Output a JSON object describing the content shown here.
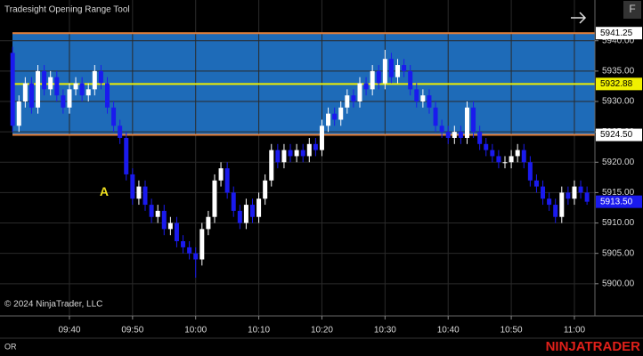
{
  "chart_data": {
    "type": "candlestick",
    "title": "Tradesight Opening Range Tool",
    "x": [
      571,
      572,
      573,
      574,
      575,
      576,
      577,
      578,
      579,
      580,
      581,
      582,
      583,
      584,
      585,
      586,
      587,
      588,
      589,
      590,
      591,
      592,
      593,
      594,
      595,
      596,
      597,
      598,
      599,
      600,
      601,
      602,
      603,
      604,
      605,
      606,
      607,
      608,
      609,
      610,
      611,
      612,
      613,
      614,
      615,
      616,
      617,
      618,
      619,
      620,
      621,
      622,
      623,
      624,
      625,
      626,
      627,
      628,
      629,
      630,
      631,
      632,
      633,
      634,
      635,
      636,
      637,
      638,
      639,
      640,
      641,
      642,
      643,
      644,
      645,
      646,
      647,
      648,
      649,
      650,
      651,
      652,
      653,
      654,
      655,
      656,
      657,
      658,
      659,
      660,
      661,
      662
    ],
    "open": [
      5938,
      5926,
      5930,
      5933,
      5929,
      5935,
      5932,
      5934,
      5931,
      5929,
      5932,
      5933,
      5931,
      5932,
      5935,
      5933,
      5929,
      5926,
      5924,
      5918,
      5914,
      5916,
      5913,
      5911,
      5912,
      5909,
      5910,
      5907,
      5906,
      5905,
      5904,
      5909,
      5911,
      5917,
      5919,
      5915,
      5912,
      5910,
      5913,
      5911,
      5914,
      5917,
      5922,
      5920,
      5922,
      5921,
      5922,
      5921,
      5923,
      5922,
      5926,
      5928,
      5927,
      5929,
      5931,
      5930,
      5933,
      5932,
      5935,
      5933,
      5937,
      5934,
      5936,
      5935,
      5932,
      5930,
      5931,
      5929,
      5926,
      5925,
      5924,
      5925,
      5924,
      5929,
      5925,
      5923,
      5922,
      5921,
      5920,
      5920,
      5921,
      5922,
      5920,
      5917,
      5916,
      5914,
      5913,
      5911,
      5915,
      5914,
      5916,
      5915
    ],
    "high": [
      5939,
      5931,
      5934,
      5934,
      5936,
      5936,
      5935,
      5935,
      5932,
      5933,
      5934,
      5934,
      5933,
      5936,
      5936,
      5934,
      5930,
      5927,
      5925,
      5919,
      5917,
      5917,
      5914,
      5913,
      5913,
      5911,
      5911,
      5908,
      5907,
      5906,
      5910,
      5912,
      5918,
      5920,
      5920,
      5916,
      5913,
      5914,
      5914,
      5915,
      5918,
      5923,
      5923,
      5923,
      5923,
      5923,
      5923,
      5924,
      5924,
      5927,
      5929,
      5929,
      5930,
      5932,
      5932,
      5934,
      5934,
      5936,
      5936,
      5938.5,
      5938,
      5937,
      5937,
      5936,
      5933,
      5932,
      5932,
      5930,
      5927,
      5926,
      5926,
      5926,
      5930,
      5930,
      5926,
      5924,
      5923,
      5922,
      5921,
      5922,
      5923,
      5923,
      5921,
      5918,
      5917,
      5915,
      5914,
      5916,
      5916,
      5917,
      5917,
      5916
    ],
    "low": [
      5925,
      5925,
      5929,
      5928,
      5928,
      5931,
      5931,
      5930,
      5928,
      5928,
      5931,
      5930,
      5930,
      5931,
      5932,
      5928,
      5925,
      5923,
      5917,
      5913,
      5913,
      5912,
      5910,
      5910,
      5908,
      5908,
      5906,
      5905,
      5904,
      5901,
      5903,
      5908,
      5910,
      5916,
      5914,
      5911,
      5909,
      5909,
      5910,
      5910,
      5913,
      5916,
      5919,
      5919,
      5920,
      5920,
      5920,
      5920,
      5921,
      5921,
      5925,
      5926,
      5926,
      5928,
      5929,
      5929,
      5931,
      5931,
      5932,
      5932,
      5933,
      5933,
      5934,
      5931,
      5929,
      5929,
      5928,
      5925,
      5924,
      5923,
      5923,
      5923,
      5923,
      5924,
      5922,
      5921,
      5920,
      5919,
      5919,
      5919,
      5920,
      5919,
      5916,
      5915,
      5913,
      5912,
      5910,
      5910,
      5913,
      5913,
      5914,
      5913
    ],
    "close": [
      5926,
      5930,
      5933,
      5929,
      5935,
      5932,
      5934,
      5931,
      5929,
      5932,
      5933,
      5931,
      5932,
      5935,
      5933,
      5929,
      5926,
      5924,
      5918,
      5914,
      5916,
      5913,
      5911,
      5912,
      5909,
      5910,
      5907,
      5906,
      5905,
      5904,
      5909,
      5911,
      5917,
      5919,
      5915,
      5912,
      5910,
      5913,
      5911,
      5914,
      5917,
      5922,
      5920,
      5922,
      5921,
      5922,
      5921,
      5923,
      5922,
      5926,
      5928,
      5927,
      5929,
      5931,
      5930,
      5933,
      5932,
      5935,
      5933,
      5937,
      5934,
      5936,
      5935,
      5932,
      5930,
      5931,
      5929,
      5926,
      5925,
      5924,
      5925,
      5924,
      5929,
      5925,
      5923,
      5922,
      5921,
      5920,
      5920,
      5921,
      5922,
      5920,
      5917,
      5916,
      5914,
      5913,
      5911,
      5915,
      5914,
      5916,
      5915,
      5913.5
    ],
    "up_color": "#ffffff",
    "down_color": "#1a1aee",
    "xlim": [
      569,
      663.25
    ],
    "ylim": [
      5894.7,
      5946.7
    ],
    "xticks": [
      {
        "value": 580,
        "label": "09:40"
      },
      {
        "value": 590,
        "label": "09:50"
      },
      {
        "value": 600,
        "label": "10:00"
      },
      {
        "value": 610,
        "label": "10:10"
      },
      {
        "value": 620,
        "label": "10:20"
      },
      {
        "value": 630,
        "label": "10:30"
      },
      {
        "value": 640,
        "label": "10:40"
      },
      {
        "value": 650,
        "label": "10:50"
      },
      {
        "value": 660,
        "label": "11:00"
      }
    ],
    "yticks": [
      {
        "value": 5900,
        "label": "5900.00"
      },
      {
        "value": 5905,
        "label": "5905.00"
      },
      {
        "value": 5910,
        "label": "5910.00"
      },
      {
        "value": 5915,
        "label": "5915.00"
      },
      {
        "value": 5920,
        "label": "5920.00"
      },
      {
        "value": 5925,
        "label": "5925.00"
      },
      {
        "value": 5930,
        "label": "5930.00"
      },
      {
        "value": 5935,
        "label": "5935.00"
      },
      {
        "value": 5940,
        "label": "5940.00"
      }
    ],
    "grid": true,
    "range_fill": "#1e6bb8",
    "levels": [
      {
        "value": 5941.25,
        "label": "5941.25",
        "color": "#e8823a",
        "tag_color": "#ffffff"
      },
      {
        "value": 5932.88,
        "label": "5932.88",
        "color": "#f0f000",
        "tag_color": "#f0f000"
      },
      {
        "value": 5924.5,
        "label": "5924.50",
        "color": "#e8823a",
        "tag_color": "#ffffff"
      }
    ],
    "last_price": {
      "value": 5913.5,
      "label": "5913.50",
      "color": "#1a1aee"
    },
    "annotations": [
      {
        "text": "A",
        "x": 585.5,
        "y": 5915,
        "color": "#f0e020"
      }
    ]
  },
  "footer": {
    "copyright": "© 2024 NinjaTrader, LLC",
    "label": "OR",
    "brand": "NINJATRADER"
  },
  "button": "F"
}
